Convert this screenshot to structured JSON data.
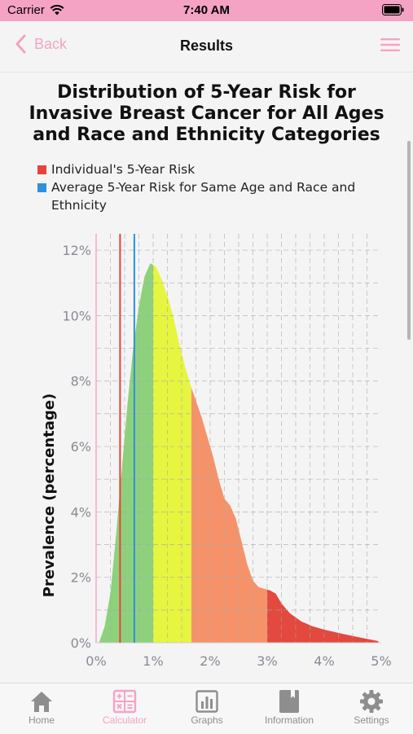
{
  "status": {
    "carrier": "Carrier",
    "time": "7:40 AM"
  },
  "nav": {
    "back_label": "Back",
    "title": "Results"
  },
  "colors": {
    "accent": "#f5a3c4",
    "individual_line": "#e8433a",
    "average_line": "#2f8fe0",
    "band_green": "#8ed17c",
    "band_yellow": "#e6f53f",
    "band_orange": "#f6926a",
    "band_red": "#e3493e"
  },
  "chart_data": {
    "type": "area",
    "title": "Distribution of 5-Year Risk for Invasive Breast Cancer for All Ages and Race and Ethnicity Categories",
    "ylabel": "Prevalence (percentage)",
    "xlabel": "",
    "x_ticks": [
      "0%",
      "1%",
      "2%",
      "3%",
      "4%",
      "5%"
    ],
    "y_ticks": [
      "0%",
      "2%",
      "4%",
      "6%",
      "8%",
      "10%",
      "12%"
    ],
    "xlim": [
      0,
      5
    ],
    "ylim": [
      0,
      12.5
    ],
    "grid": true,
    "legend": [
      {
        "label": "Individual's 5-Year Risk",
        "color": "#e8433a"
      },
      {
        "label": "Average 5-Year Risk for Same Age and Race and Ethnicity",
        "color": "#2f8fe0"
      }
    ],
    "individual_risk": 0.42,
    "average_risk": 0.67,
    "bands": [
      {
        "from": 0,
        "to": 1.0,
        "color": "#8ed17c"
      },
      {
        "from": 1.0,
        "to": 1.67,
        "color": "#e6f53f"
      },
      {
        "from": 1.67,
        "to": 3.0,
        "color": "#f6926a"
      },
      {
        "from": 3.0,
        "to": 5.0,
        "color": "#e3493e"
      }
    ],
    "curve": [
      [
        0.05,
        0.0
      ],
      [
        0.15,
        0.5
      ],
      [
        0.25,
        1.5
      ],
      [
        0.35,
        3.3
      ],
      [
        0.45,
        5.3
      ],
      [
        0.55,
        7.3
      ],
      [
        0.65,
        9.0
      ],
      [
        0.75,
        10.3
      ],
      [
        0.85,
        11.2
      ],
      [
        0.95,
        11.6
      ],
      [
        1.05,
        11.5
      ],
      [
        1.15,
        11.1
      ],
      [
        1.25,
        10.6
      ],
      [
        1.35,
        10.0
      ],
      [
        1.45,
        9.2
      ],
      [
        1.55,
        8.5
      ],
      [
        1.65,
        7.9
      ],
      [
        1.75,
        7.4
      ],
      [
        1.85,
        6.9
      ],
      [
        1.95,
        6.3
      ],
      [
        2.05,
        5.7
      ],
      [
        2.15,
        5.0
      ],
      [
        2.25,
        4.4
      ],
      [
        2.35,
        4.2
      ],
      [
        2.45,
        3.8
      ],
      [
        2.55,
        3.1
      ],
      [
        2.65,
        2.4
      ],
      [
        2.75,
        1.9
      ],
      [
        2.85,
        1.7
      ],
      [
        2.95,
        1.65
      ],
      [
        3.05,
        1.6
      ],
      [
        3.15,
        1.5
      ],
      [
        3.25,
        1.2
      ],
      [
        3.4,
        0.9
      ],
      [
        3.6,
        0.65
      ],
      [
        3.8,
        0.5
      ],
      [
        4.0,
        0.4
      ],
      [
        4.3,
        0.28
      ],
      [
        4.6,
        0.17
      ],
      [
        4.95,
        0.05
      ]
    ]
  },
  "tabs": [
    {
      "label": "Home",
      "icon": "house-icon",
      "active": false
    },
    {
      "label": "Calculator",
      "icon": "calculator-icon",
      "active": true
    },
    {
      "label": "Graphs",
      "icon": "bar-chart-icon",
      "active": false
    },
    {
      "label": "Information",
      "icon": "book-icon",
      "active": false
    },
    {
      "label": "Settings",
      "icon": "gear-icon",
      "active": false
    }
  ]
}
